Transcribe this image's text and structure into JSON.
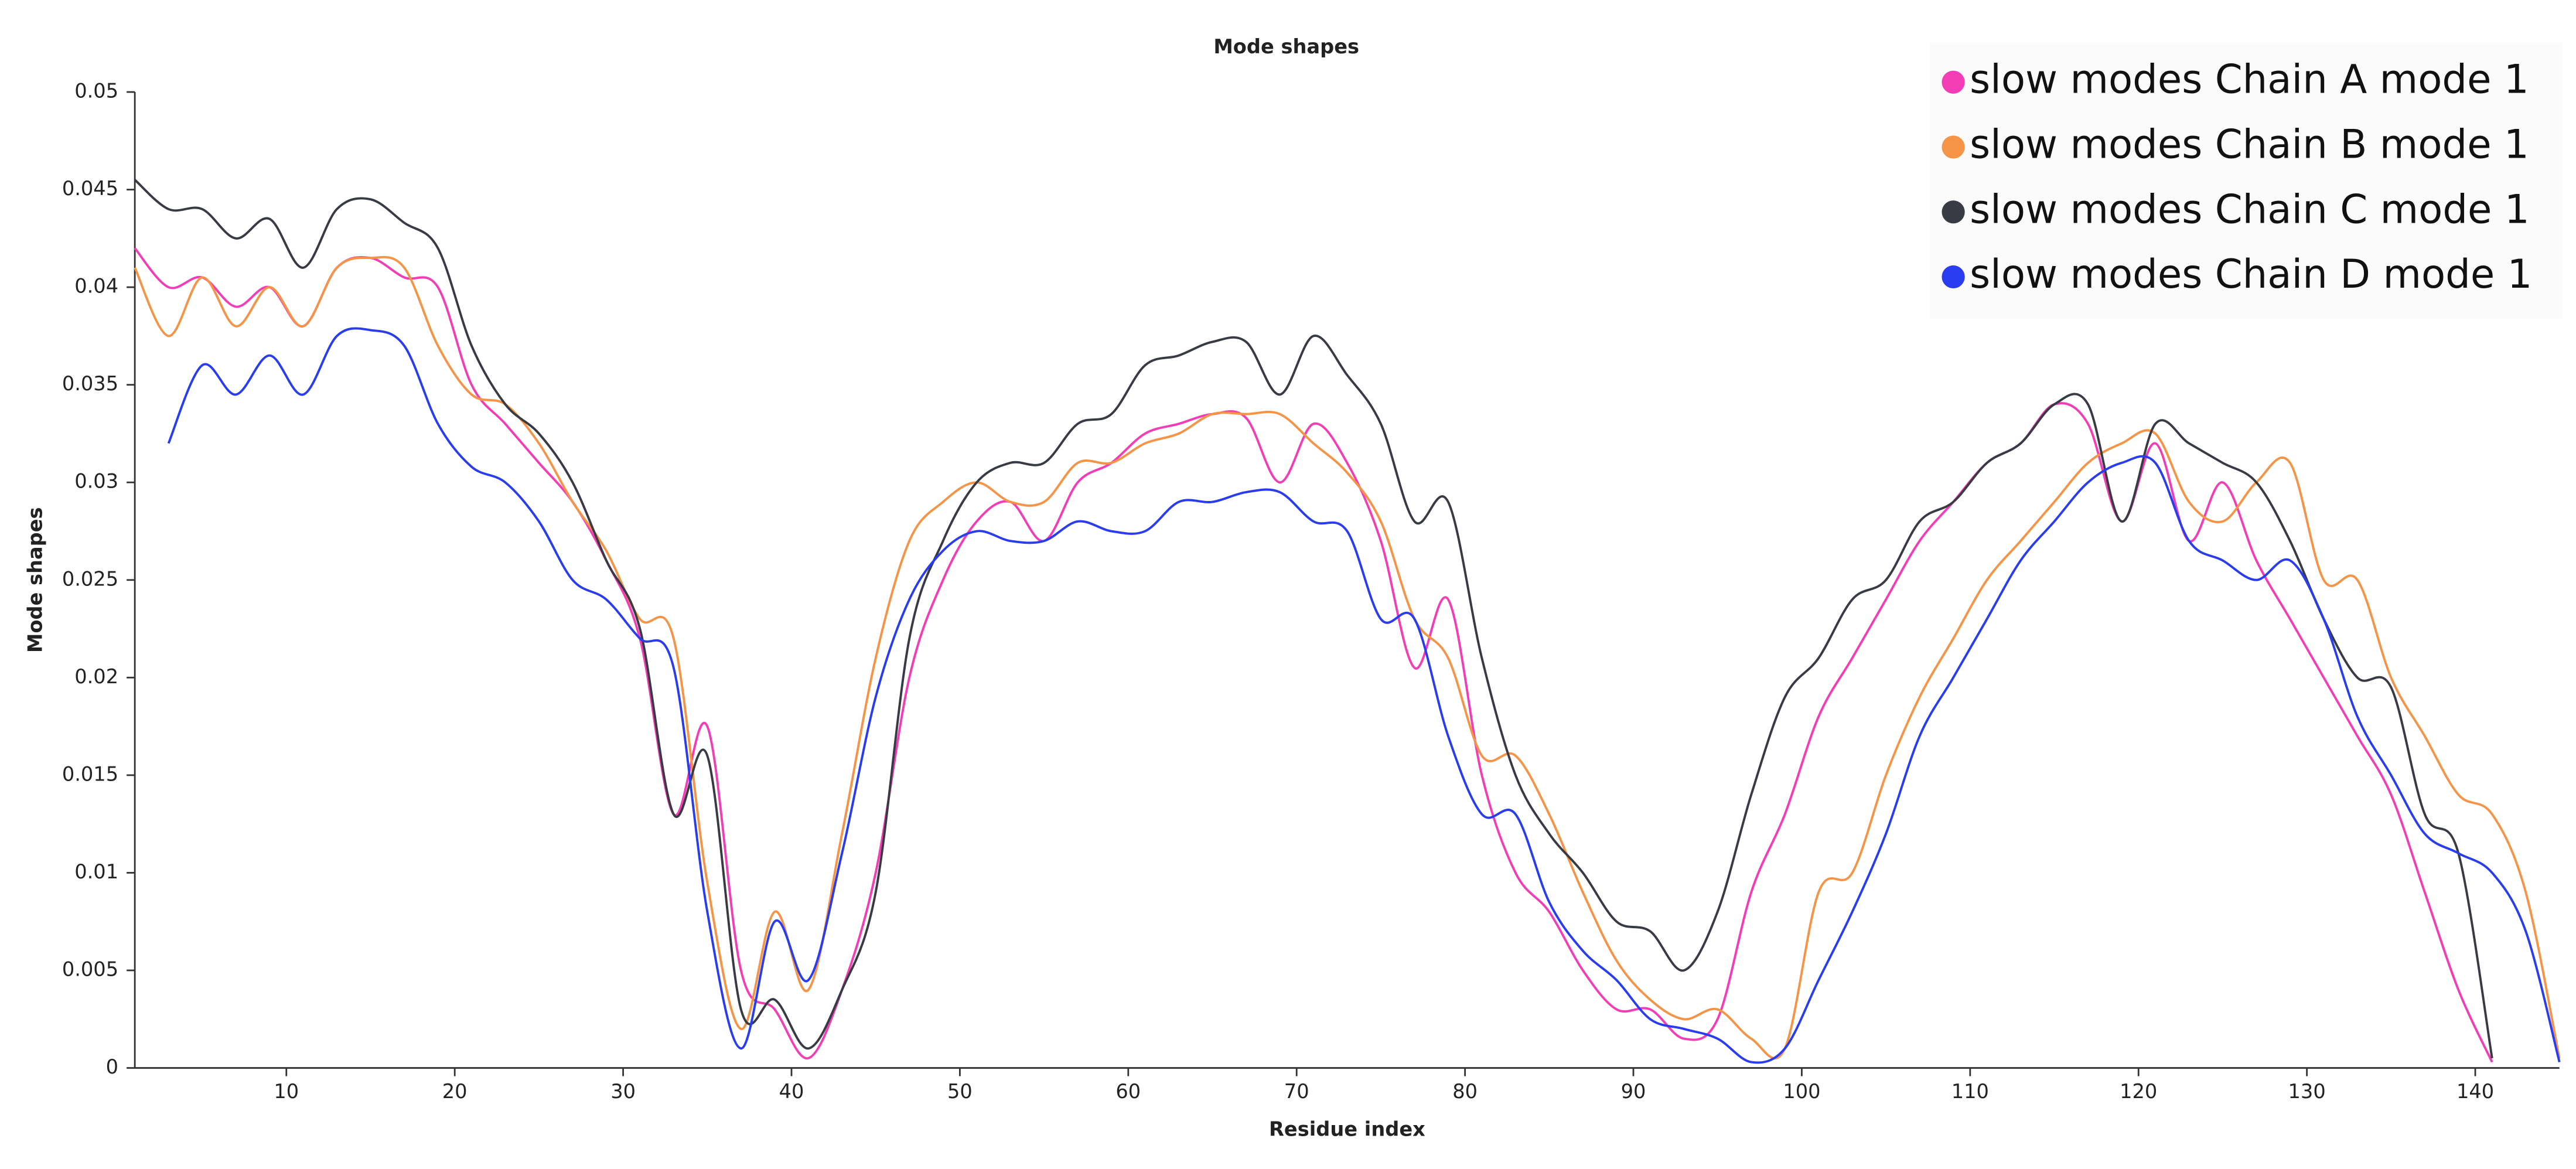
{
  "chart_data": {
    "type": "line",
    "title": "Mode shapes",
    "x_label": "Residue index",
    "y_label": "Mode shapes",
    "legend": "upper right",
    "grid": false,
    "xlim": [
      1,
      145
    ],
    "ylim": [
      0,
      0.05
    ],
    "xticks": [
      10,
      20,
      30,
      40,
      50,
      60,
      70,
      80,
      90,
      100,
      110,
      120,
      130,
      140
    ],
    "yticks": [
      0,
      0.005,
      0.01,
      0.015,
      0.02,
      0.025,
      0.03,
      0.035,
      0.04,
      0.045,
      0.05
    ],
    "x": [
      1,
      3,
      5,
      7,
      9,
      11,
      13,
      15,
      17,
      19,
      21,
      23,
      25,
      27,
      29,
      31,
      33,
      35,
      37,
      39,
      41,
      43,
      45,
      47,
      49,
      51,
      53,
      55,
      57,
      59,
      61,
      63,
      65,
      67,
      69,
      71,
      73,
      75,
      77,
      79,
      81,
      83,
      85,
      87,
      89,
      91,
      93,
      95,
      97,
      99,
      101,
      103,
      105,
      107,
      109,
      111,
      113,
      115,
      117,
      119,
      121,
      123,
      125,
      127,
      129,
      131,
      133,
      135,
      137,
      139,
      141,
      143,
      145
    ],
    "series": [
      {
        "name": "slow modes Chain A mode 1",
        "color": "#f23db6",
        "values": [
          0.042,
          0.04,
          0.0405,
          0.039,
          0.04,
          0.038,
          0.041,
          0.0415,
          0.0405,
          0.04,
          0.035,
          0.033,
          0.031,
          0.029,
          0.026,
          0.022,
          0.013,
          0.0175,
          0.005,
          0.003,
          0.0005,
          0.004,
          0.01,
          0.02,
          0.025,
          0.028,
          0.029,
          0.027,
          0.03,
          0.031,
          0.0325,
          0.033,
          0.0335,
          0.0333,
          0.03,
          0.033,
          0.031,
          0.027,
          0.0205,
          0.024,
          0.015,
          0.01,
          0.008,
          0.005,
          0.003,
          0.003,
          0.0015,
          0.0025,
          0.009,
          0.013,
          0.018,
          0.021,
          0.024,
          0.027,
          0.029,
          0.031,
          0.032,
          0.034,
          0.033,
          0.028,
          0.032,
          0.027,
          0.03,
          0.026,
          0.023,
          0.02,
          0.017,
          0.014,
          0.009,
          0.004,
          0.0003,
          null,
          null
        ]
      },
      {
        "name": "slow modes Chain B mode 1",
        "color": "#f59447",
        "values": [
          0.041,
          0.0375,
          0.0405,
          0.038,
          0.04,
          0.038,
          0.041,
          0.0415,
          0.041,
          0.037,
          0.0345,
          0.034,
          0.032,
          0.029,
          0.0265,
          0.023,
          0.022,
          0.0095,
          0.002,
          0.008,
          0.004,
          0.012,
          0.021,
          0.027,
          0.029,
          0.03,
          0.029,
          0.029,
          0.031,
          0.031,
          0.032,
          0.0325,
          0.0335,
          0.0335,
          0.0335,
          0.032,
          0.0305,
          0.028,
          0.023,
          0.021,
          0.016,
          0.016,
          0.013,
          0.009,
          0.0055,
          0.0035,
          0.0025,
          0.003,
          0.0015,
          0.001,
          0.009,
          0.01,
          0.015,
          0.019,
          0.022,
          0.025,
          0.027,
          0.029,
          0.031,
          0.032,
          0.0325,
          0.029,
          0.028,
          0.03,
          0.031,
          0.025,
          0.025,
          0.02,
          0.017,
          0.014,
          0.013,
          0.009,
          0.0005
        ]
      },
      {
        "name": "slow modes Chain C mode 1",
        "color": "#383b43",
        "values": [
          0.0455,
          0.044,
          0.044,
          0.0425,
          0.0435,
          0.041,
          0.044,
          0.0445,
          0.0433,
          0.042,
          0.037,
          0.034,
          0.0325,
          0.03,
          0.026,
          0.0225,
          0.013,
          0.016,
          0.003,
          0.0035,
          0.001,
          0.004,
          0.009,
          0.022,
          0.027,
          0.03,
          0.031,
          0.031,
          0.033,
          0.0335,
          0.036,
          0.0365,
          0.0372,
          0.0372,
          0.0345,
          0.0375,
          0.0355,
          0.033,
          0.028,
          0.029,
          0.021,
          0.015,
          0.012,
          0.01,
          0.0075,
          0.007,
          0.005,
          0.008,
          0.014,
          0.019,
          0.021,
          0.024,
          0.025,
          0.028,
          0.029,
          0.031,
          0.032,
          0.034,
          0.034,
          0.028,
          0.033,
          0.032,
          0.031,
          0.03,
          0.027,
          0.023,
          0.02,
          0.0195,
          0.013,
          0.011,
          0.0005,
          null,
          null
        ]
      },
      {
        "name": "slow modes Chain D mode 1",
        "color": "#2a3cf0",
        "values": [
          null,
          0.032,
          0.036,
          0.0345,
          0.0365,
          0.0345,
          0.0375,
          0.0378,
          0.037,
          0.033,
          0.0308,
          0.03,
          0.028,
          0.025,
          0.024,
          0.022,
          0.0205,
          0.008,
          0.001,
          0.0075,
          0.0045,
          0.011,
          0.019,
          0.024,
          0.0265,
          0.0275,
          0.027,
          0.027,
          0.028,
          0.0275,
          0.0275,
          0.029,
          0.029,
          0.0295,
          0.0295,
          0.028,
          0.0275,
          0.023,
          0.023,
          0.017,
          0.013,
          0.013,
          0.0085,
          0.006,
          0.0045,
          0.0025,
          0.002,
          0.0015,
          0.0003,
          0.001,
          0.0045,
          0.008,
          0.012,
          0.017,
          0.02,
          0.023,
          0.026,
          0.028,
          0.03,
          0.031,
          0.031,
          0.027,
          0.026,
          0.025,
          0.026,
          0.023,
          0.018,
          0.015,
          0.012,
          0.011,
          0.01,
          0.007,
          0.0003
        ]
      }
    ]
  }
}
